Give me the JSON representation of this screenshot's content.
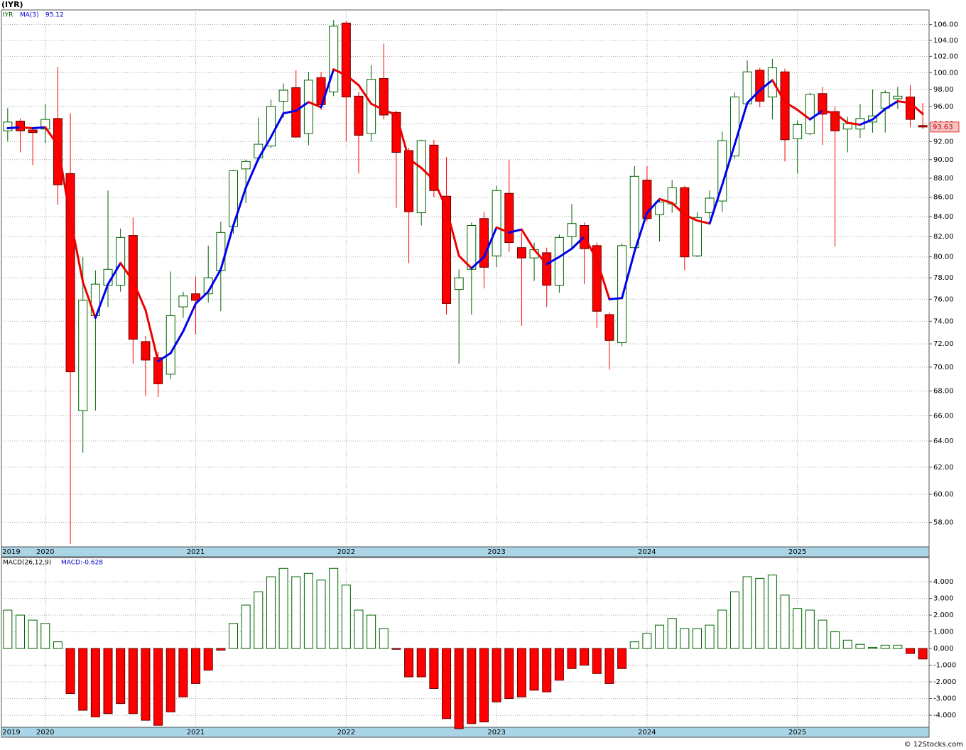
{
  "chart_data": [
    {
      "type": "candlestick",
      "title": "(IYR)",
      "symbol": "IYR",
      "ma_name": "MA(3)",
      "categories": [
        "2019",
        null,
        null,
        "2020",
        null,
        null,
        null,
        null,
        null,
        null,
        null,
        null,
        null,
        null,
        null,
        "2021",
        null,
        null,
        null,
        null,
        null,
        null,
        null,
        null,
        null,
        null,
        null,
        "2022",
        null,
        null,
        null,
        null,
        null,
        null,
        null,
        null,
        null,
        null,
        null,
        "2023",
        null,
        null,
        null,
        null,
        null,
        null,
        null,
        null,
        null,
        null,
        null,
        "2024",
        null,
        null,
        null,
        null,
        null,
        null,
        null,
        null,
        null,
        null,
        null,
        "2025",
        null,
        null,
        null,
        null,
        null,
        null,
        null,
        null,
        null,
        null
      ],
      "open": [
        93.2,
        94.3,
        93.3,
        93.4,
        94.6,
        88.5,
        66.4,
        74.5,
        77.3,
        77.3,
        82.1,
        72.2,
        70.8,
        69.4,
        75.3,
        76.5,
        76.5,
        78.7,
        83.0,
        89.0,
        90.2,
        91.5,
        96.6,
        98.2,
        92.9,
        99.4,
        97.7,
        106.2,
        97.2,
        92.9,
        99.3,
        95.3,
        91.0,
        84.4,
        91.6,
        86.1,
        76.9,
        78.8,
        83.8,
        80.1,
        86.4,
        80.9,
        79.9,
        80.4,
        77.3,
        82.0,
        83.1,
        81.1,
        74.6,
        72.1,
        80.9,
        87.8,
        84.2,
        85.3,
        87.0,
        80.1,
        84.4,
        85.6,
        90.4,
        96.3,
        100.3,
        97.1,
        100.1,
        92.3,
        92.9,
        97.5,
        95.4,
        93.4,
        93.4,
        94.2,
        95.8,
        96.9,
        97.1,
        93.8
      ],
      "high": [
        95.8,
        94.6,
        93.6,
        96.3,
        100.7,
        95.2,
        80.0,
        78.7,
        86.7,
        82.8,
        83.9,
        72.7,
        71.3,
        78.6,
        76.7,
        78.1,
        81.1,
        83.5,
        88.9,
        90.0,
        94.7,
        96.8,
        98.7,
        100.3,
        100.1,
        100.1,
        106.6,
        106.5,
        97.7,
        100.9,
        103.6,
        95.5,
        91.3,
        92.2,
        92.2,
        90.3,
        78.8,
        83.4,
        84.5,
        87.2,
        90.0,
        82.4,
        81.4,
        80.9,
        82.2,
        85.3,
        83.4,
        81.4,
        74.8,
        81.3,
        89.3,
        89.3,
        85.9,
        87.8,
        87.2,
        84.5,
        86.7,
        93.1,
        97.6,
        101.5,
        100.6,
        101.7,
        100.5,
        94.4,
        97.6,
        98.3,
        96.0,
        94.8,
        96.3,
        98.0,
        97.9,
        98.3,
        98.5,
        96.4
      ],
      "low": [
        92.0,
        90.8,
        89.4,
        91.8,
        85.2,
        56.5,
        63.1,
        66.4,
        75.3,
        76.7,
        70.3,
        67.6,
        67.5,
        69.0,
        74.3,
        72.8,
        75.7,
        74.9,
        82.3,
        85.4,
        89.8,
        91.3,
        94.7,
        92.4,
        91.6,
        95.6,
        97.2,
        92.0,
        88.5,
        92.0,
        94.5,
        84.9,
        79.4,
        83.1,
        86.0,
        74.6,
        70.3,
        74.6,
        77.0,
        79.0,
        80.5,
        73.6,
        77.7,
        75.3,
        76.6,
        80.9,
        77.4,
        73.4,
        69.8,
        71.8,
        80.8,
        83.5,
        81.5,
        84.4,
        78.7,
        80.0,
        83.8,
        84.5,
        90.1,
        96.2,
        95.9,
        94.5,
        89.8,
        88.5,
        92.7,
        91.6,
        81.0,
        90.8,
        92.4,
        93.0,
        93.0,
        95.7,
        93.6,
        93.4
      ],
      "close": [
        94.2,
        93.2,
        93.0,
        94.5,
        87.3,
        69.6,
        75.9,
        77.4,
        78.8,
        81.9,
        72.4,
        70.6,
        68.6,
        74.5,
        76.3,
        75.9,
        78.0,
        82.4,
        88.8,
        89.8,
        91.7,
        96.0,
        97.9,
        92.5,
        99.1,
        96.2,
        105.8,
        97.1,
        92.7,
        99.2,
        95.0,
        90.8,
        84.5,
        92.1,
        86.7,
        75.6,
        78.0,
        83.1,
        79.0,
        86.7,
        81.4,
        79.9,
        80.7,
        77.3,
        81.9,
        83.3,
        80.8,
        74.9,
        72.3,
        81.1,
        88.2,
        83.8,
        85.5,
        87.0,
        80.0,
        83.9,
        85.9,
        92.1,
        97.1,
        100.1,
        96.6,
        100.6,
        92.2,
        93.9,
        97.4,
        95.1,
        93.2,
        94.0,
        94.6,
        94.9,
        97.6,
        97.2,
        94.5,
        93.63
      ],
      "ma": [
        93.5,
        93.6,
        93.5,
        93.6,
        91.6,
        83.8,
        77.6,
        74.3,
        77.4,
        79.4,
        77.7,
        75.0,
        70.5,
        71.2,
        73.1,
        75.6,
        76.7,
        78.8,
        83.1,
        87.0,
        90.1,
        92.5,
        95.2,
        95.5,
        96.5,
        95.9,
        100.4,
        99.7,
        98.5,
        96.3,
        95.6,
        95.0,
        90.1,
        89.1,
        87.8,
        84.8,
        80.1,
        78.9,
        80.0,
        82.9,
        82.4,
        82.7,
        80.7,
        79.3,
        80.0,
        80.8,
        82.0,
        79.7,
        76.0,
        76.1,
        80.5,
        84.4,
        85.8,
        85.4,
        84.2,
        83.6,
        83.3,
        87.3,
        91.7,
        96.4,
        97.9,
        99.1,
        96.5,
        95.6,
        94.5,
        95.5,
        95.2,
        94.1,
        93.9,
        94.5,
        95.7,
        96.6,
        96.4,
        95.12
      ],
      "up_color": "#006400",
      "down_color": "#ff0000",
      "ma_up_color": "#0000ee",
      "ma_down_color": "#ee0000",
      "log_scale": true,
      "grid": true,
      "ylim": [
        56.3,
        107.9
      ],
      "yticks": [
        {
          "value": 58,
          "label": "58.00"
        },
        {
          "value": 60,
          "label": "60.00"
        },
        {
          "value": 62,
          "label": "62.00"
        },
        {
          "value": 64,
          "label": "64.00"
        },
        {
          "value": 66,
          "label": "66.00"
        },
        {
          "value": 68,
          "label": "68.00"
        },
        {
          "value": 70,
          "label": "70.00"
        },
        {
          "value": 72,
          "label": "72.00"
        },
        {
          "value": 74,
          "label": "74.00"
        },
        {
          "value": 76,
          "label": "76.00"
        },
        {
          "value": 78,
          "label": "78.00"
        },
        {
          "value": 80,
          "label": "80.00"
        },
        {
          "value": 82,
          "label": "82.00"
        },
        {
          "value": 84,
          "label": "84.00"
        },
        {
          "value": 86,
          "label": "86.00"
        },
        {
          "value": 88,
          "label": "88.00"
        },
        {
          "value": 90,
          "label": "90.00"
        },
        {
          "value": 92,
          "label": "92.00"
        },
        {
          "value": 94,
          "label": "94.00"
        },
        {
          "value": 96,
          "label": "96.00"
        },
        {
          "value": 98,
          "label": "98.00"
        },
        {
          "value": 100,
          "label": "100.00"
        },
        {
          "value": 102,
          "label": "102.00"
        },
        {
          "value": 104,
          "label": "104.00"
        },
        {
          "value": 106,
          "label": "106.00"
        }
      ]
    },
    {
      "type": "bar",
      "title": "MACD(26,12,9)",
      "value_label": "MACD:-0.628",
      "values": [
        2.3,
        2.0,
        1.7,
        1.5,
        0.4,
        -2.7,
        -3.7,
        -4.1,
        -3.9,
        -3.3,
        -3.9,
        -4.3,
        -4.6,
        -3.8,
        -2.9,
        -2.1,
        -1.3,
        -0.1,
        1.5,
        2.6,
        3.4,
        4.3,
        4.8,
        4.3,
        4.5,
        4.1,
        4.8,
        3.8,
        2.3,
        2.0,
        1.2,
        -0.05,
        -1.7,
        -1.7,
        -2.4,
        -4.2,
        -4.8,
        -4.5,
        -4.4,
        -3.2,
        -3.0,
        -2.9,
        -2.5,
        -2.6,
        -1.9,
        -1.2,
        -1.0,
        -1.5,
        -2.1,
        -1.2,
        0.4,
        0.9,
        1.4,
        1.8,
        1.2,
        1.2,
        1.4,
        2.3,
        3.4,
        4.3,
        4.2,
        4.4,
        3.2,
        2.4,
        2.3,
        1.7,
        1.0,
        0.5,
        0.25,
        0.07,
        0.2,
        0.2,
        -0.3,
        -0.628
      ],
      "pos_color": "#006400",
      "neg_color": "#ff0000",
      "grid": true,
      "ylim": [
        -4.72,
        5.45
      ],
      "yticks": [
        {
          "value": -4,
          "label": "-4.000"
        },
        {
          "value": -3,
          "label": "-3.000"
        },
        {
          "value": -2,
          "label": "-2.000"
        },
        {
          "value": -1,
          "label": "-1.000"
        },
        {
          "value": 0,
          "label": "0.000"
        },
        {
          "value": 1,
          "label": "1.000"
        },
        {
          "value": 2,
          "label": "2.000"
        },
        {
          "value": 3,
          "label": "3.000"
        },
        {
          "value": 4,
          "label": "4.000"
        }
      ]
    }
  ],
  "footer": "© 12Stocks.com"
}
